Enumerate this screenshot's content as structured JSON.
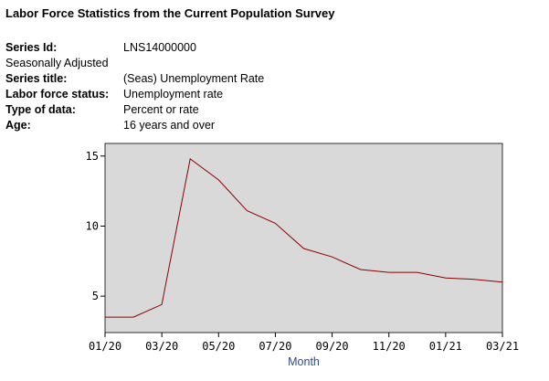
{
  "title": "Labor Force Statistics from the Current Population Survey",
  "meta": {
    "series_id_label": "Series Id:",
    "series_id": "LNS14000000",
    "seasonal": "Seasonally Adjusted",
    "series_title_label": "Series title:",
    "series_title": "(Seas) Unemployment Rate",
    "lf_status_label": "Labor force status:",
    "lf_status": "Unemployment rate",
    "type_label": "Type of data:",
    "type": "Percent or rate",
    "age_label": "Age:",
    "age": "16 years and over"
  },
  "chart_data": {
    "type": "line",
    "xlabel": "Month",
    "ylabel": "",
    "x": [
      "2020-01",
      "2020-02",
      "2020-03",
      "2020-04",
      "2020-05",
      "2020-06",
      "2020-07",
      "2020-08",
      "2020-09",
      "2020-10",
      "2020-11",
      "2020-12",
      "2021-01",
      "2021-02",
      "2021-03"
    ],
    "xticks": [
      "01/20",
      "03/20",
      "05/20",
      "07/20",
      "09/20",
      "11/20",
      "01/21",
      "03/21"
    ],
    "yticks": [
      5,
      10,
      15
    ],
    "ylim": [
      2.4,
      15.9
    ],
    "series": [
      {
        "values": [
          3.5,
          3.5,
          4.4,
          14.8,
          13.3,
          11.1,
          10.2,
          8.4,
          7.8,
          6.9,
          6.7,
          6.7,
          6.3,
          6.2,
          6.0
        ],
        "color": "#8b0000"
      }
    ],
    "plot_background": "#d9d9d9",
    "grid": false
  }
}
